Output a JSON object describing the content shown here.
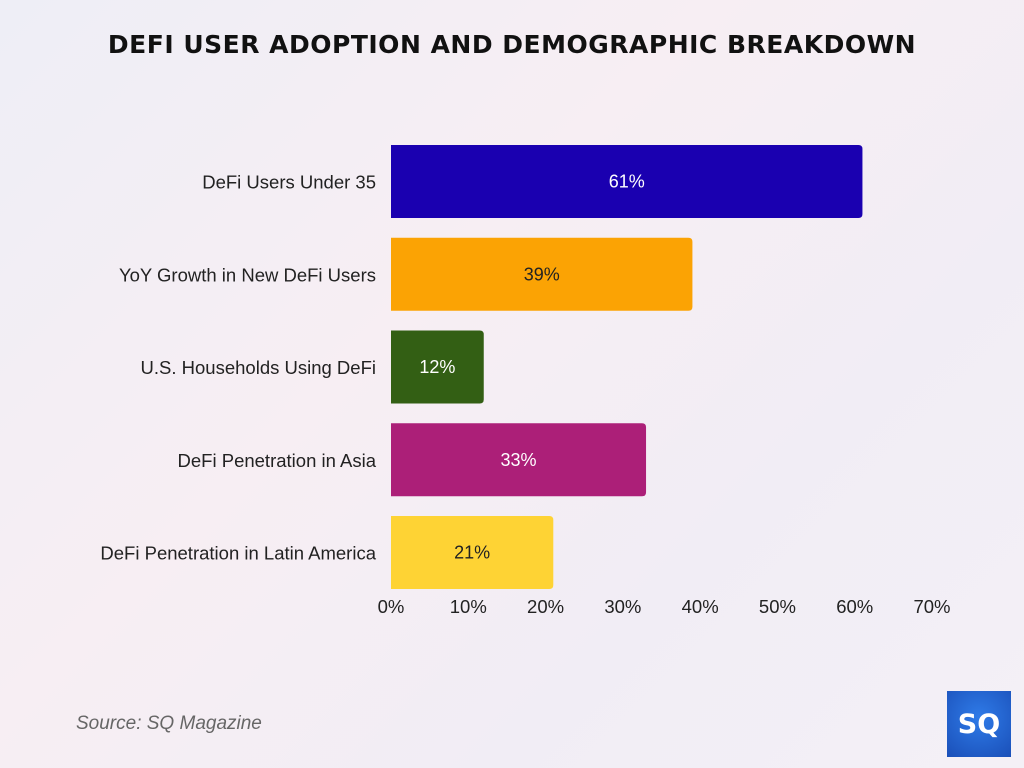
{
  "chart_data": {
    "type": "bar",
    "orientation": "horizontal",
    "title": "DEFI USER ADOPTION AND DEMOGRAPHIC BREAKDOWN",
    "categories": [
      "DeFi Users Under 35",
      "YoY Growth in New DeFi Users",
      "U.S. Households Using DeFi",
      "DeFi Penetration in Asia",
      "DeFi Penetration in Latin America"
    ],
    "values": [
      61,
      39,
      12,
      33,
      21
    ],
    "data_labels": [
      "61%",
      "39%",
      "12%",
      "33%",
      "21%"
    ],
    "colors": [
      "#1a00b0",
      "#fba304",
      "#335f14",
      "#ac1f78",
      "#fed334"
    ],
    "label_colors": [
      "#ffffff",
      "#222222",
      "#ffffff",
      "#ffffff",
      "#222222"
    ],
    "xlim": [
      0,
      70
    ],
    "x_ticks": [
      "0%",
      "10%",
      "20%",
      "30%",
      "40%",
      "50%",
      "60%",
      "70%"
    ],
    "grid": false,
    "xlabel": "",
    "ylabel": ""
  },
  "source": "Source: SQ Magazine",
  "logo_text": "SQ"
}
